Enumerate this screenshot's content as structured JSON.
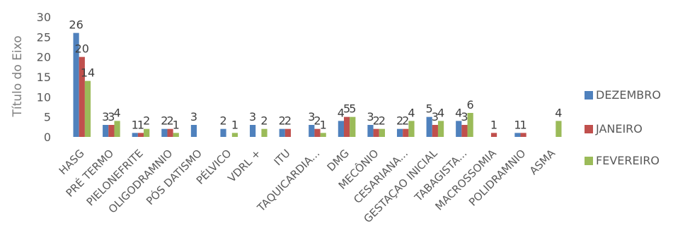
{
  "chart_data": {
    "type": "bar",
    "ylabel": "Título do Eixo",
    "ylim": [
      0,
      30
    ],
    "yticks": [
      0,
      5,
      10,
      15,
      20,
      25,
      30
    ],
    "grid": false,
    "legend_position": "right",
    "categories": [
      "HASG",
      "PRÉ TERMO",
      "PIELONEFRITE",
      "OLIGODRAMNIO",
      "PÓS DATISMO",
      "PÉLVICO",
      "VDRL +",
      "ITU",
      "TAQUICARDIA...",
      "DMG",
      "MECÔNIO",
      "CESARIANA...",
      "GESTAÇAO INICIAL",
      "TABAGISTA...",
      "MACROSSOMIA",
      "POLIDRAMNIO",
      "ASMA"
    ],
    "series": [
      {
        "name": "DEZEMBRO",
        "color": "#4f81bd",
        "values": [
          26,
          3,
          1,
          2,
          3,
          2,
          3,
          2,
          3,
          4,
          3,
          2,
          5,
          4,
          null,
          1,
          null
        ]
      },
      {
        "name": "JANEIRO",
        "color": "#c0504d",
        "values": [
          20,
          3,
          1,
          2,
          null,
          null,
          null,
          2,
          2,
          5,
          2,
          2,
          3,
          3,
          1,
          1,
          null
        ]
      },
      {
        "name": "FEVEREIRO",
        "color": "#9bbb59",
        "values": [
          14,
          4,
          2,
          1,
          null,
          1,
          2,
          null,
          1,
          5,
          2,
          4,
          4,
          6,
          null,
          null,
          4
        ]
      }
    ]
  }
}
